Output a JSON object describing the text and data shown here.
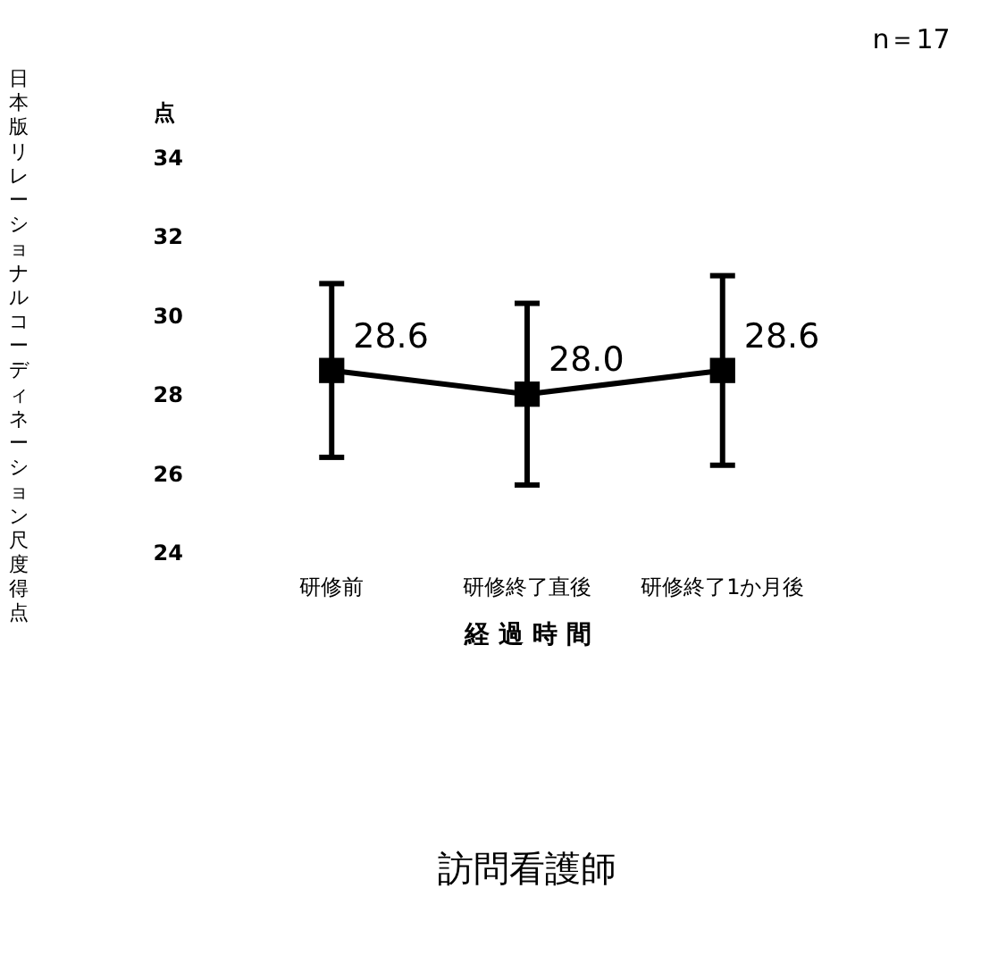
{
  "chart_data": {
    "type": "line",
    "title": "訪問看護師",
    "xlabel": "経 過 時 間",
    "ylabel": "日本版リレーショナルコーディネーション尺度得点",
    "annotations": [
      "n＝17",
      "点"
    ],
    "categories": [
      "研修前",
      "研修終了直後",
      "研修終了1か月後"
    ],
    "series": [
      {
        "color": "#000000",
        "values": [
          28.6,
          28.0,
          28.6
        ],
        "value_labels": [
          "28.6",
          "28.0",
          "28.6"
        ],
        "errors": [
          2.2,
          2.3,
          2.4
        ]
      }
    ],
    "ylim": [
      24,
      34
    ],
    "yticks": [
      24,
      26,
      28,
      30,
      32,
      34
    ],
    "grid": false,
    "marker": "square",
    "line_style": "solid"
  }
}
